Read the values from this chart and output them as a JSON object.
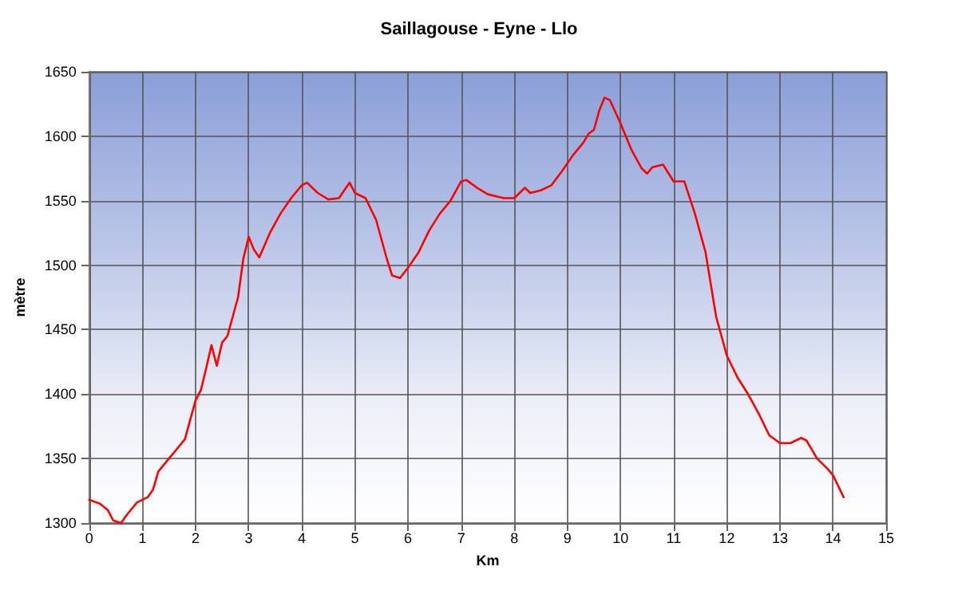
{
  "chart_data": {
    "type": "line",
    "title": "Saillagouse - Eyne - Llo",
    "xlabel": "Km",
    "ylabel": "mètre",
    "xlim": [
      0,
      15
    ],
    "xticks": [
      0,
      1,
      2,
      3,
      4,
      5,
      6,
      7,
      8,
      9,
      10,
      11,
      12,
      13,
      14,
      15
    ],
    "ylim": [
      1300,
      1650
    ],
    "yticks": [
      1300,
      1350,
      1400,
      1450,
      1500,
      1550,
      1600,
      1650
    ],
    "grid": true,
    "marker": "none",
    "line_style": "solid",
    "x": [
      0,
      0.2,
      0.35,
      0.45,
      0.6,
      0.7,
      0.9,
      1.1,
      1.2,
      1.3,
      1.5,
      1.7,
      1.8,
      1.9,
      2.0,
      2.1,
      2.2,
      2.3,
      2.4,
      2.5,
      2.6,
      2.7,
      2.8,
      2.9,
      3.0,
      3.1,
      3.2,
      3.4,
      3.6,
      3.8,
      4.0,
      4.1,
      4.3,
      4.5,
      4.7,
      4.9,
      5.0,
      5.2,
      5.4,
      5.6,
      5.7,
      5.85,
      6.0,
      6.2,
      6.4,
      6.6,
      6.8,
      7.0,
      7.1,
      7.3,
      7.5,
      7.8,
      8.0,
      8.2,
      8.3,
      8.5,
      8.7,
      8.9,
      9.1,
      9.3,
      9.4,
      9.5,
      9.6,
      9.7,
      9.8,
      10.0,
      10.2,
      10.4,
      10.5,
      10.6,
      10.8,
      11.0,
      11.2,
      11.4,
      11.6,
      11.8,
      12.0,
      12.2,
      12.4,
      12.6,
      12.8,
      13.0,
      13.2,
      13.4,
      13.5,
      13.7,
      13.9,
      14.0,
      14.2
    ],
    "series": [
      {
        "color": "#ff0000",
        "values": [
          1318,
          1315,
          1310,
          1302,
          1300,
          1306,
          1316,
          1320,
          1326,
          1340,
          1350,
          1360,
          1365,
          1380,
          1395,
          1403,
          1420,
          1438,
          1422,
          1440,
          1445,
          1460,
          1475,
          1505,
          1522,
          1512,
          1506,
          1525,
          1540,
          1552,
          1562,
          1564,
          1556,
          1551,
          1552,
          1564,
          1556,
          1552,
          1535,
          1505,
          1492,
          1490,
          1498,
          1510,
          1527,
          1540,
          1550,
          1565,
          1566,
          1560,
          1555,
          1552,
          1552,
          1560,
          1556,
          1558,
          1562,
          1573,
          1585,
          1595,
          1602,
          1605,
          1620,
          1630,
          1628,
          1610,
          1590,
          1575,
          1571,
          1576,
          1578,
          1565,
          1565,
          1540,
          1510,
          1460,
          1430,
          1413,
          1400,
          1385,
          1368,
          1362,
          1362,
          1366,
          1364,
          1350,
          1342,
          1337,
          1320
        ]
      }
    ]
  }
}
